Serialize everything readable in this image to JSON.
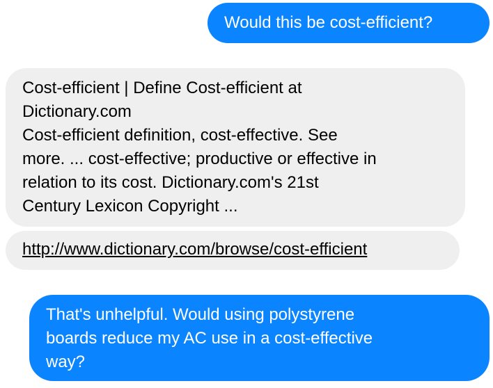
{
  "messages": [
    {
      "sender": "user",
      "text": "Would this be cost-efficient?"
    },
    {
      "sender": "bot",
      "lines": [
        "Cost-efficient | Define Cost-efficient at",
        "Dictionary.com",
        "Cost-efficient definition, cost-effective. See",
        "more. ... cost-effective; productive or effective in",
        "relation to its cost. Dictionary.com's 21st",
        "Century Lexicon Copyright ..."
      ]
    },
    {
      "sender": "bot",
      "link": "http://www.dictionary.com/browse/cost-efficient"
    },
    {
      "sender": "user",
      "lines": [
        "That's unhelpful. Would using polystyrene",
        "boards reduce my AC use in a cost-effective",
        "way?"
      ]
    }
  ],
  "colors": {
    "outgoing_bubble": "#0a84ff",
    "incoming_bubble": "#efefef",
    "outgoing_text": "#ffffff",
    "incoming_text": "#000000"
  }
}
